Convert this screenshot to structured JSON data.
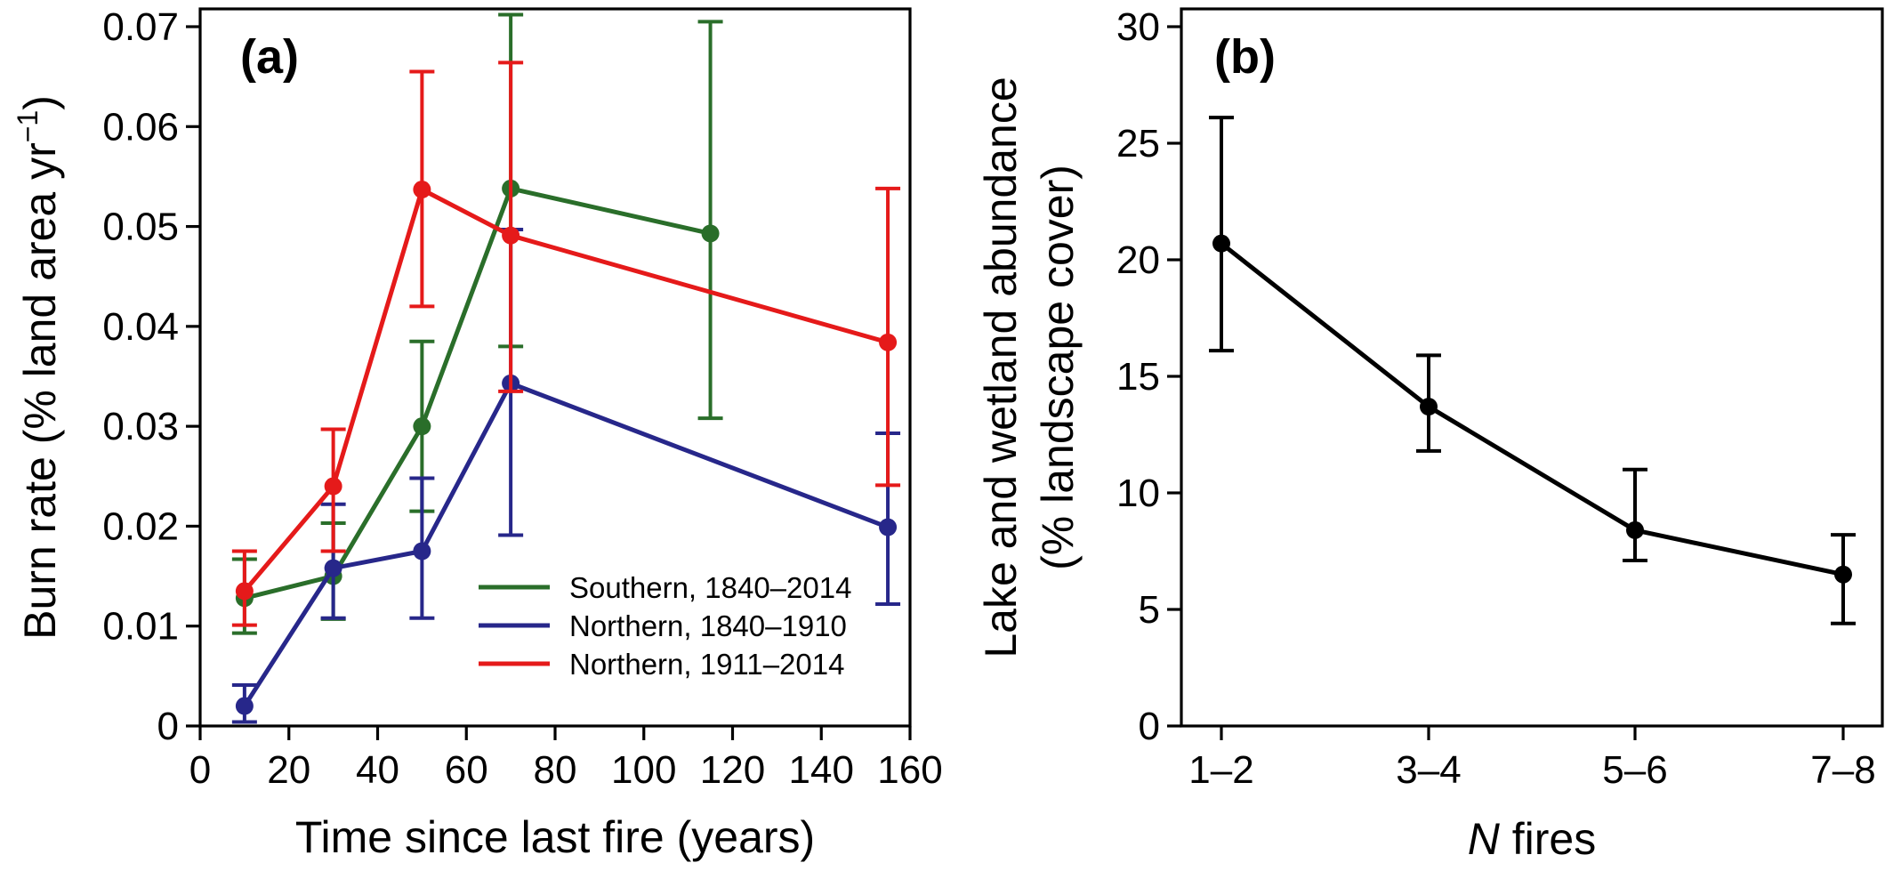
{
  "chart_data": [
    {
      "type": "line",
      "panel_label": "(a)",
      "xlabel": "Time since last fire (years)",
      "ylabel": "Burn rate (% land area yr",
      "ylabel_sup": "−1",
      "ylabel_close": ")",
      "xlim": [
        0,
        160
      ],
      "ylim": [
        0,
        0.07
      ],
      "xticks": [
        0,
        20,
        40,
        60,
        80,
        100,
        120,
        140,
        160
      ],
      "yticks": [
        0,
        0.01,
        0.02,
        0.03,
        0.04,
        0.05,
        0.06,
        0.07
      ],
      "ytick_labels": [
        "0",
        "0.01",
        "0.02",
        "0.03",
        "0.04",
        "0.05",
        "0.06",
        "0.07"
      ],
      "grid": false,
      "legend_position": "lower-right",
      "series": [
        {
          "name": "Southern, 1840–2014",
          "color": "#2a6e2a",
          "x": [
            10,
            30,
            50,
            70,
            115
          ],
          "y": [
            0.0128,
            0.015,
            0.03,
            0.0538,
            0.0493
          ],
          "err_low": [
            0.0093,
            0.0107,
            0.0215,
            0.038,
            0.0308
          ],
          "err_high": [
            0.0167,
            0.0203,
            0.0385,
            0.0712,
            0.0705
          ]
        },
        {
          "name": "Northern, 1840–1910",
          "color": "#27278a",
          "x": [
            10,
            30,
            50,
            70,
            155
          ],
          "y": [
            0.002,
            0.0158,
            0.0175,
            0.0343,
            0.0199
          ],
          "err_low": [
            0.0004,
            0.0108,
            0.0108,
            0.0191,
            0.0122
          ],
          "err_high": [
            0.0041,
            0.0222,
            0.0248,
            0.0497,
            0.0293
          ]
        },
        {
          "name": "Northern, 1911–2014",
          "color": "#e51a1a",
          "x": [
            10,
            30,
            50,
            70,
            155
          ],
          "y": [
            0.0135,
            0.024,
            0.0537,
            0.0491,
            0.0384
          ],
          "err_low": [
            0.0101,
            0.0175,
            0.042,
            0.0335,
            0.0241
          ],
          "err_high": [
            0.0175,
            0.0297,
            0.0655,
            0.0664,
            0.0538
          ]
        }
      ]
    },
    {
      "type": "line",
      "panel_label": "(b)",
      "xlabel_italic": "N",
      "xlabel_rest": " fires",
      "ylabel": "Lake and wetland abundance",
      "ylabel2": "(% landscape cover)",
      "categories": [
        "1–2",
        "3–4",
        "5–6",
        "7–8"
      ],
      "ylim": [
        0,
        30
      ],
      "yticks": [
        0,
        5,
        10,
        15,
        20,
        25,
        30
      ],
      "grid": false,
      "series": [
        {
          "color": "#000000",
          "y": [
            20.7,
            13.7,
            8.4,
            6.5
          ],
          "err_low": [
            16.1,
            11.8,
            7.1,
            4.4
          ],
          "err_high": [
            26.1,
            15.9,
            11.0,
            8.2
          ]
        }
      ]
    }
  ]
}
